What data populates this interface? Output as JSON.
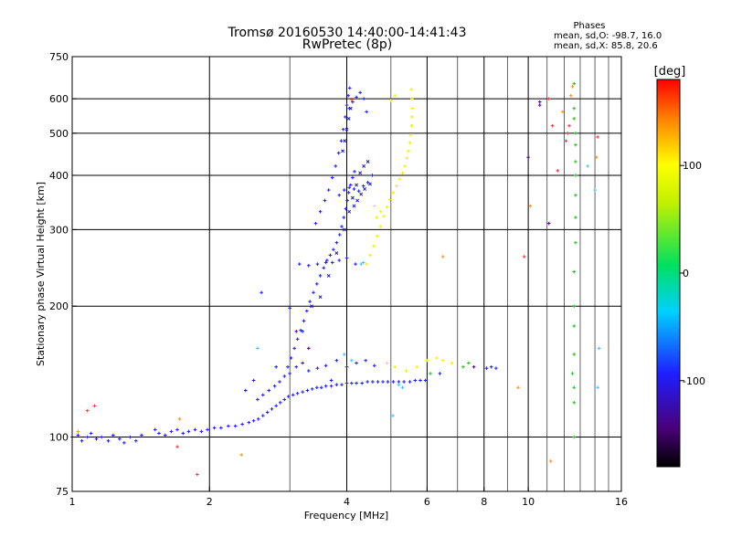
{
  "chart_data": {
    "type": "scatter",
    "title_line1": "Tromsø 20160530 14:40:00-14:41:43",
    "title_line2": "RwPretec (8p)",
    "phases_header": "Phases",
    "phases_line_o": "mean, sd,O: -98.7, 16.0",
    "phases_line_x": "mean, sd,X:  85.8, 20.6",
    "xlabel": "Frequency [MHz]",
    "ylabel": "Stationary phase Virtual Height [km]",
    "x_scale": "log",
    "y_scale": "log",
    "xlim": [
      1,
      16
    ],
    "ylim": [
      75,
      750
    ],
    "x_ticks": [
      {
        "value": 1,
        "label": "1"
      },
      {
        "value": 2,
        "label": "2"
      },
      {
        "value": 4,
        "label": "4"
      },
      {
        "value": 6,
        "label": "6"
      },
      {
        "value": 8,
        "label": "8"
      },
      {
        "value": 10,
        "label": "10"
      },
      {
        "value": 16,
        "label": "16"
      }
    ],
    "y_ticks": [
      {
        "value": 75,
        "label": "75"
      },
      {
        "value": 100,
        "label": "100"
      },
      {
        "value": 200,
        "label": "200"
      },
      {
        "value": 300,
        "label": "300"
      },
      {
        "value": 400,
        "label": "400"
      },
      {
        "value": 500,
        "label": "500"
      },
      {
        "value": 600,
        "label": "600"
      },
      {
        "value": 750,
        "label": "750"
      }
    ],
    "x_grid_major": [
      2,
      4,
      6,
      8,
      10
    ],
    "x_grid_minor": [
      3,
      5,
      7,
      9,
      11,
      12,
      13,
      14,
      15
    ],
    "y_grid": [
      100,
      200,
      300,
      400,
      500,
      600
    ],
    "grid": true,
    "colorbar": {
      "label": "[deg]",
      "min": -180,
      "max": 180,
      "ticks": [
        {
          "value": 100,
          "label": "100"
        },
        {
          "value": 0,
          "label": "0"
        },
        {
          "value": -100,
          "label": "-100"
        }
      ]
    },
    "series": [
      {
        "color": "#1a1aff",
        "marker": "+",
        "points": [
          [
            1.0,
            100
          ],
          [
            1.03,
            101
          ],
          [
            1.05,
            98
          ],
          [
            1.08,
            100
          ],
          [
            1.1,
            102
          ],
          [
            1.13,
            99
          ],
          [
            1.16,
            100
          ],
          [
            1.2,
            98
          ],
          [
            1.23,
            101
          ],
          [
            1.27,
            99
          ],
          [
            1.3,
            97
          ],
          [
            1.34,
            100
          ],
          [
            1.38,
            98
          ],
          [
            1.42,
            101
          ],
          [
            1.52,
            104
          ],
          [
            1.55,
            102
          ],
          [
            1.6,
            101
          ],
          [
            1.65,
            103
          ],
          [
            1.7,
            104
          ],
          [
            1.75,
            102
          ],
          [
            1.8,
            103
          ],
          [
            1.86,
            104
          ],
          [
            1.92,
            103
          ],
          [
            1.98,
            104
          ],
          [
            2.05,
            105
          ],
          [
            2.12,
            105
          ],
          [
            2.2,
            106
          ],
          [
            2.28,
            106
          ],
          [
            2.36,
            107
          ],
          [
            2.44,
            108
          ],
          [
            2.5,
            109
          ],
          [
            2.56,
            110
          ],
          [
            2.62,
            112
          ],
          [
            2.68,
            114
          ],
          [
            2.74,
            116
          ],
          [
            2.8,
            118
          ],
          [
            2.86,
            120
          ],
          [
            2.92,
            122
          ],
          [
            2.98,
            124
          ],
          [
            3.05,
            125
          ],
          [
            3.12,
            126
          ],
          [
            3.2,
            127
          ],
          [
            3.28,
            128
          ],
          [
            3.36,
            129
          ],
          [
            3.44,
            130
          ],
          [
            3.52,
            130
          ],
          [
            3.6,
            131
          ],
          [
            3.7,
            131
          ],
          [
            3.8,
            132
          ],
          [
            3.9,
            132
          ],
          [
            4.0,
            133
          ],
          [
            4.1,
            133
          ],
          [
            4.2,
            133
          ],
          [
            4.32,
            133
          ],
          [
            4.44,
            134
          ],
          [
            4.56,
            134
          ],
          [
            4.68,
            134
          ],
          [
            4.8,
            134
          ],
          [
            4.92,
            134
          ],
          [
            5.06,
            134
          ],
          [
            5.2,
            134
          ],
          [
            5.34,
            134
          ],
          [
            5.5,
            134
          ],
          [
            5.65,
            135
          ],
          [
            5.8,
            135
          ],
          [
            5.95,
            135
          ],
          [
            2.55,
            122
          ],
          [
            2.62,
            125
          ],
          [
            2.7,
            128
          ],
          [
            2.78,
            131
          ],
          [
            2.85,
            134
          ],
          [
            2.92,
            138
          ],
          [
            2.97,
            145
          ],
          [
            3.02,
            152
          ],
          [
            3.07,
            160
          ],
          [
            3.12,
            168
          ],
          [
            3.17,
            176
          ],
          [
            3.22,
            185
          ],
          [
            3.27,
            195
          ],
          [
            3.32,
            205
          ],
          [
            3.38,
            215
          ],
          [
            3.44,
            225
          ],
          [
            3.5,
            235
          ],
          [
            3.56,
            245
          ],
          [
            3.62,
            255
          ],
          [
            3.68,
            262
          ],
          [
            3.74,
            270
          ],
          [
            3.8,
            280
          ],
          [
            3.86,
            292
          ],
          [
            3.9,
            305
          ],
          [
            3.94,
            320
          ],
          [
            3.98,
            335
          ],
          [
            4.01,
            350
          ],
          [
            4.04,
            365
          ],
          [
            4.08,
            380
          ],
          [
            4.12,
            395
          ],
          [
            4.16,
            408
          ],
          [
            3.42,
            310
          ],
          [
            3.5,
            330
          ],
          [
            3.58,
            350
          ],
          [
            3.65,
            370
          ],
          [
            3.72,
            395
          ],
          [
            3.78,
            420
          ],
          [
            3.84,
            450
          ],
          [
            3.89,
            480
          ],
          [
            3.93,
            510
          ],
          [
            3.97,
            545
          ],
          [
            4.0,
            580
          ],
          [
            4.03,
            610
          ],
          [
            4.06,
            635
          ],
          [
            4.05,
            570
          ],
          [
            4.12,
            590
          ],
          [
            4.2,
            605
          ],
          [
            4.28,
            620
          ],
          [
            4.36,
            600
          ],
          [
            4.42,
            560
          ],
          [
            3.15,
            250
          ],
          [
            3.3,
            248
          ],
          [
            3.45,
            250
          ],
          [
            3.6,
            252
          ],
          [
            3.72,
            252
          ],
          [
            3.85,
            255
          ],
          [
            4.0,
            258
          ],
          [
            4.18,
            250
          ],
          [
            3.85,
            360
          ],
          [
            3.95,
            370
          ],
          [
            4.05,
            375
          ],
          [
            4.15,
            372
          ],
          [
            4.25,
            368
          ],
          [
            4.35,
            378
          ],
          [
            4.45,
            385
          ],
          [
            4.55,
            400
          ],
          [
            3.0,
            140
          ],
          [
            3.1,
            145
          ],
          [
            3.2,
            148
          ],
          [
            3.3,
            142
          ],
          [
            3.45,
            144
          ],
          [
            3.6,
            146
          ],
          [
            3.8,
            150
          ],
          [
            4.0,
            145
          ],
          [
            4.2,
            148
          ],
          [
            4.4,
            150
          ],
          [
            4.6,
            146
          ],
          [
            2.6,
            215
          ],
          [
            3.0,
            198
          ],
          [
            3.2,
            175
          ],
          [
            2.8,
            145
          ],
          [
            2.5,
            135
          ],
          [
            2.4,
            128
          ],
          [
            3.7,
            135
          ],
          [
            6.4,
            140
          ],
          [
            8.1,
            144
          ],
          [
            8.3,
            145
          ],
          [
            8.5,
            144
          ]
        ]
      },
      {
        "color": "#2020c0",
        "marker": "x",
        "points": [
          [
            3.35,
            200
          ],
          [
            3.5,
            210
          ],
          [
            3.65,
            235
          ],
          [
            3.8,
            265
          ],
          [
            3.95,
            300
          ],
          [
            4.05,
            330
          ],
          [
            4.12,
            355
          ],
          [
            4.2,
            380
          ],
          [
            4.28,
            405
          ],
          [
            4.36,
            420
          ],
          [
            4.45,
            430
          ],
          [
            4.15,
            340
          ],
          [
            4.22,
            350
          ],
          [
            4.3,
            362
          ],
          [
            4.38,
            372
          ],
          [
            4.5,
            382
          ],
          [
            3.92,
            455
          ],
          [
            3.96,
            480
          ],
          [
            4.0,
            510
          ],
          [
            4.04,
            540
          ],
          [
            4.08,
            570
          ]
        ]
      },
      {
        "color": "#f0f000",
        "marker": "+",
        "points": [
          [
            4.42,
            250
          ],
          [
            4.5,
            262
          ],
          [
            4.58,
            275
          ],
          [
            4.66,
            290
          ],
          [
            4.74,
            305
          ],
          [
            4.82,
            322
          ],
          [
            4.9,
            338
          ],
          [
            4.98,
            352
          ],
          [
            5.06,
            365
          ],
          [
            5.14,
            378
          ],
          [
            5.22,
            392
          ],
          [
            5.3,
            405
          ],
          [
            5.36,
            420
          ],
          [
            5.42,
            438
          ],
          [
            5.46,
            455
          ],
          [
            5.5,
            475
          ],
          [
            5.52,
            495
          ],
          [
            5.55,
            520
          ],
          [
            5.56,
            545
          ],
          [
            5.57,
            570
          ],
          [
            5.56,
            600
          ],
          [
            5.54,
            630
          ],
          [
            4.6,
            340
          ],
          [
            4.65,
            320
          ],
          [
            4.75,
            330
          ],
          [
            5.0,
            595
          ],
          [
            5.1,
            610
          ],
          [
            4.9,
            148
          ],
          [
            5.1,
            145
          ],
          [
            5.4,
            142
          ],
          [
            5.7,
            145
          ],
          [
            6.0,
            150
          ],
          [
            6.3,
            152
          ],
          [
            6.5,
            150
          ],
          [
            6.8,
            148
          ]
        ]
      },
      {
        "color": "#40c0ff",
        "marker": "+",
        "points": [
          [
            4.3,
            250
          ],
          [
            4.35,
            252
          ],
          [
            3.95,
            155
          ],
          [
            4.1,
            150
          ],
          [
            5.2,
            132
          ],
          [
            5.3,
            130
          ],
          [
            14.2,
            130
          ],
          [
            14.3,
            160
          ],
          [
            13.5,
            420
          ],
          [
            14.0,
            370
          ],
          [
            2.55,
            160
          ],
          [
            5.05,
            112
          ]
        ]
      },
      {
        "color": "#20c020",
        "marker": "+",
        "points": [
          [
            12.6,
            570
          ],
          [
            12.6,
            540
          ],
          [
            12.7,
            500
          ],
          [
            12.7,
            470
          ],
          [
            12.7,
            430
          ],
          [
            12.7,
            400
          ],
          [
            12.7,
            360
          ],
          [
            12.7,
            320
          ],
          [
            12.7,
            280
          ],
          [
            12.6,
            240
          ],
          [
            12.6,
            200
          ],
          [
            12.6,
            180
          ],
          [
            12.6,
            155
          ],
          [
            12.5,
            140
          ],
          [
            12.6,
            130
          ],
          [
            12.6,
            120
          ],
          [
            12.6,
            100
          ],
          [
            6.1,
            140
          ],
          [
            7.2,
            145
          ],
          [
            7.4,
            148
          ],
          [
            12.6,
            650
          ]
        ]
      },
      {
        "color": "#ff3030",
        "marker": "+",
        "points": [
          [
            11.1,
            600
          ],
          [
            11.3,
            520
          ],
          [
            12.2,
            500
          ],
          [
            11.6,
            410
          ],
          [
            12.1,
            480
          ],
          [
            9.8,
            260
          ],
          [
            12.3,
            520
          ],
          [
            14.2,
            490
          ],
          [
            1.7,
            95
          ],
          [
            1.88,
            82
          ],
          [
            1.08,
            115
          ],
          [
            1.12,
            118
          ],
          [
            4.1,
            598
          ]
        ]
      },
      {
        "color": "#ff9020",
        "marker": "+",
        "points": [
          [
            1.03,
            103
          ],
          [
            1.72,
            110
          ],
          [
            2.35,
            91
          ],
          [
            6.5,
            260
          ],
          [
            9.5,
            130
          ],
          [
            11.2,
            88
          ],
          [
            10.1,
            340
          ],
          [
            11.9,
            560
          ],
          [
            12.4,
            610
          ],
          [
            12.5,
            640
          ],
          [
            14.1,
            440
          ]
        ]
      },
      {
        "color": "#500090",
        "marker": "+",
        "points": [
          [
            10.0,
            440
          ],
          [
            10.6,
            590
          ],
          [
            10.6,
            580
          ],
          [
            11.1,
            310
          ],
          [
            3.1,
            175
          ],
          [
            3.3,
            160
          ],
          [
            7.6,
            145
          ]
        ]
      }
    ]
  }
}
